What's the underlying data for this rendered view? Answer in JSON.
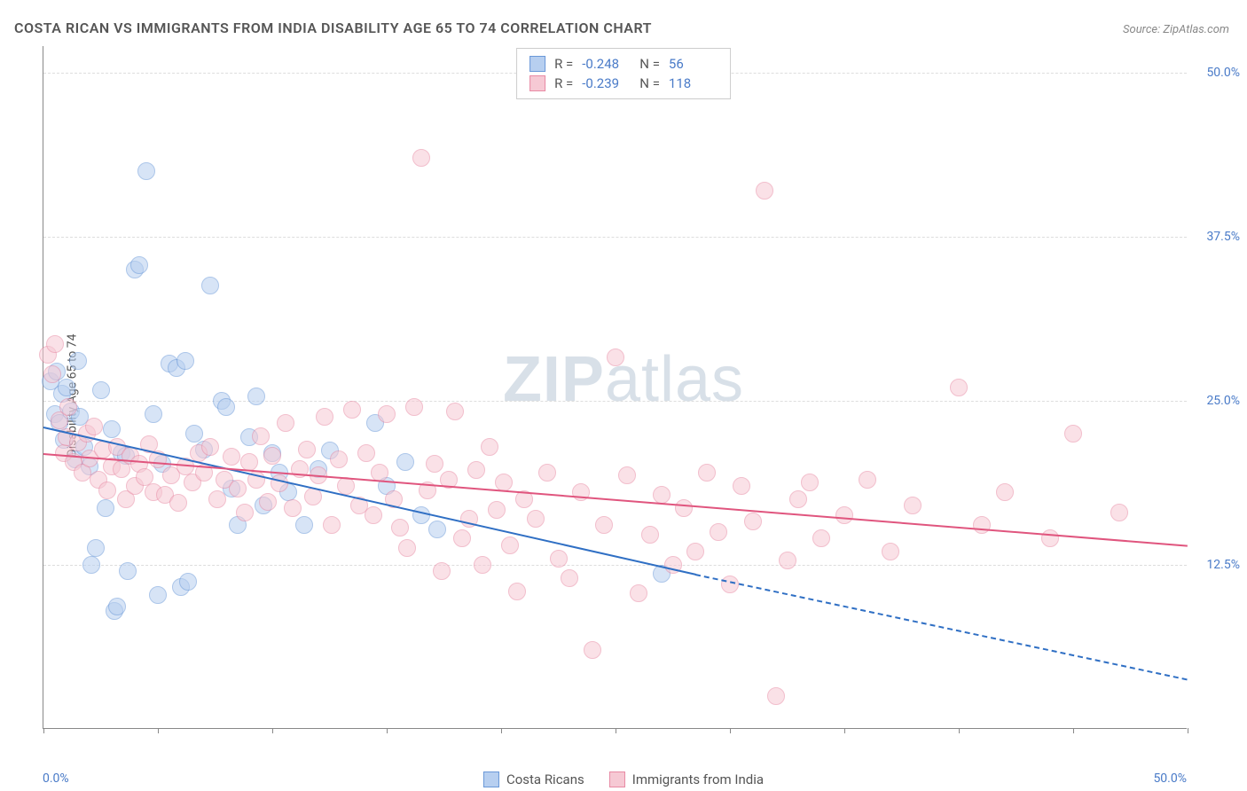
{
  "title": "COSTA RICAN VS IMMIGRANTS FROM INDIA DISABILITY AGE 65 TO 74 CORRELATION CHART",
  "source_label": "Source: ZipAtlas.com",
  "ylabel": "Disability Age 65 to 74",
  "watermark": {
    "bold": "ZIP",
    "rest": "atlas"
  },
  "chart": {
    "type": "scatter",
    "background_color": "#ffffff",
    "grid_color": "#dddddd",
    "axis_color": "#888888",
    "xlim": [
      0,
      50
    ],
    "ylim": [
      0,
      52
    ],
    "xticks": [
      0,
      5,
      10,
      15,
      20,
      25,
      30,
      35,
      40,
      45,
      50
    ],
    "yticks": [
      12.5,
      25.0,
      37.5,
      50.0
    ],
    "ytick_labels": [
      "12.5%",
      "25.0%",
      "37.5%",
      "50.0%"
    ],
    "x_axis_min_label": "0.0%",
    "x_axis_max_label": "50.0%",
    "ytick_color": "#4a7bc8",
    "marker_radius": 10,
    "marker_opacity": 0.55,
    "series": [
      {
        "name": "Costa Ricans",
        "fill_color": "#b7cff0",
        "stroke_color": "#6a98d8",
        "trend_color": "#2f6fc4",
        "r_value": "-0.248",
        "n_value": "56",
        "trend": {
          "x1": 0,
          "y1": 23.0,
          "x2": 28.5,
          "y2": 11.8,
          "dash_x2": 50,
          "dash_y2": 3.8
        },
        "points": [
          [
            0.3,
            26.5
          ],
          [
            0.5,
            24.0
          ],
          [
            0.6,
            27.2
          ],
          [
            0.7,
            23.3
          ],
          [
            0.8,
            25.5
          ],
          [
            0.9,
            22.0
          ],
          [
            1.0,
            26.0
          ],
          [
            1.2,
            24.2
          ],
          [
            1.4,
            20.5
          ],
          [
            1.5,
            28.0
          ],
          [
            1.6,
            23.8
          ],
          [
            1.8,
            21.5
          ],
          [
            2.0,
            20.0
          ],
          [
            2.1,
            12.5
          ],
          [
            2.3,
            13.8
          ],
          [
            2.5,
            25.8
          ],
          [
            2.7,
            16.8
          ],
          [
            3.0,
            22.8
          ],
          [
            3.1,
            9.0
          ],
          [
            3.2,
            9.3
          ],
          [
            3.4,
            21.0
          ],
          [
            3.6,
            20.8
          ],
          [
            3.7,
            12.0
          ],
          [
            4.0,
            35.0
          ],
          [
            4.2,
            35.3
          ],
          [
            4.5,
            42.5
          ],
          [
            4.8,
            24.0
          ],
          [
            5.0,
            10.2
          ],
          [
            5.2,
            20.2
          ],
          [
            5.5,
            27.8
          ],
          [
            5.8,
            27.5
          ],
          [
            6.0,
            10.8
          ],
          [
            6.2,
            28.0
          ],
          [
            6.3,
            11.2
          ],
          [
            6.6,
            22.5
          ],
          [
            7.0,
            21.3
          ],
          [
            7.3,
            33.8
          ],
          [
            7.8,
            25.0
          ],
          [
            8.0,
            24.5
          ],
          [
            8.2,
            18.3
          ],
          [
            8.5,
            15.5
          ],
          [
            9.0,
            22.2
          ],
          [
            9.3,
            25.3
          ],
          [
            9.6,
            17.0
          ],
          [
            10.0,
            21.0
          ],
          [
            10.3,
            19.5
          ],
          [
            10.7,
            18.0
          ],
          [
            11.4,
            15.5
          ],
          [
            12.0,
            19.8
          ],
          [
            12.5,
            21.2
          ],
          [
            14.5,
            23.3
          ],
          [
            15.0,
            18.5
          ],
          [
            15.8,
            20.3
          ],
          [
            16.5,
            16.3
          ],
          [
            17.2,
            15.2
          ],
          [
            27.0,
            11.8
          ]
        ]
      },
      {
        "name": "Immigrants from India",
        "fill_color": "#f6c9d4",
        "stroke_color": "#e88aa4",
        "trend_color": "#e0557e",
        "r_value": "-0.239",
        "n_value": "118",
        "trend": {
          "x1": 0,
          "y1": 21.0,
          "x2": 50,
          "y2": 14.0,
          "dash_x2": null,
          "dash_y2": null
        },
        "points": [
          [
            0.2,
            28.5
          ],
          [
            0.4,
            27.0
          ],
          [
            0.5,
            29.3
          ],
          [
            0.7,
            23.5
          ],
          [
            0.9,
            21.0
          ],
          [
            1.0,
            22.2
          ],
          [
            1.1,
            24.5
          ],
          [
            1.3,
            20.3
          ],
          [
            1.5,
            21.8
          ],
          [
            1.7,
            19.5
          ],
          [
            1.9,
            22.5
          ],
          [
            2.0,
            20.6
          ],
          [
            2.2,
            23.0
          ],
          [
            2.4,
            19.0
          ],
          [
            2.6,
            21.3
          ],
          [
            2.8,
            18.2
          ],
          [
            3.0,
            20.0
          ],
          [
            3.2,
            21.5
          ],
          [
            3.4,
            19.8
          ],
          [
            3.6,
            17.5
          ],
          [
            3.8,
            20.8
          ],
          [
            4.0,
            18.5
          ],
          [
            4.2,
            20.2
          ],
          [
            4.4,
            19.2
          ],
          [
            4.6,
            21.7
          ],
          [
            4.8,
            18.0
          ],
          [
            5.0,
            20.5
          ],
          [
            5.3,
            17.8
          ],
          [
            5.6,
            19.3
          ],
          [
            5.9,
            17.2
          ],
          [
            6.2,
            20.0
          ],
          [
            6.5,
            18.8
          ],
          [
            6.8,
            21.0
          ],
          [
            7.0,
            19.5
          ],
          [
            7.3,
            21.5
          ],
          [
            7.6,
            17.5
          ],
          [
            7.9,
            19.0
          ],
          [
            8.2,
            20.7
          ],
          [
            8.5,
            18.3
          ],
          [
            8.8,
            16.5
          ],
          [
            9.0,
            20.3
          ],
          [
            9.3,
            19.0
          ],
          [
            9.5,
            22.3
          ],
          [
            9.8,
            17.3
          ],
          [
            10.0,
            20.8
          ],
          [
            10.3,
            18.7
          ],
          [
            10.6,
            23.3
          ],
          [
            10.9,
            16.8
          ],
          [
            11.2,
            19.8
          ],
          [
            11.5,
            21.3
          ],
          [
            11.8,
            17.7
          ],
          [
            12.0,
            19.3
          ],
          [
            12.3,
            23.8
          ],
          [
            12.6,
            15.5
          ],
          [
            12.9,
            20.5
          ],
          [
            13.2,
            18.5
          ],
          [
            13.5,
            24.3
          ],
          [
            13.8,
            17.0
          ],
          [
            14.1,
            21.0
          ],
          [
            14.4,
            16.3
          ],
          [
            14.7,
            19.5
          ],
          [
            15.0,
            24.0
          ],
          [
            15.3,
            17.5
          ],
          [
            15.6,
            15.3
          ],
          [
            15.9,
            13.8
          ],
          [
            16.2,
            24.5
          ],
          [
            16.5,
            43.5
          ],
          [
            16.8,
            18.2
          ],
          [
            17.1,
            20.2
          ],
          [
            17.4,
            12.0
          ],
          [
            17.7,
            19.0
          ],
          [
            18.0,
            24.2
          ],
          [
            18.3,
            14.5
          ],
          [
            18.6,
            16.0
          ],
          [
            18.9,
            19.7
          ],
          [
            19.2,
            12.5
          ],
          [
            19.5,
            21.5
          ],
          [
            19.8,
            16.7
          ],
          [
            20.1,
            18.8
          ],
          [
            20.4,
            14.0
          ],
          [
            20.7,
            10.5
          ],
          [
            21.0,
            17.5
          ],
          [
            21.5,
            16.0
          ],
          [
            22.0,
            19.5
          ],
          [
            22.5,
            13.0
          ],
          [
            23.0,
            11.5
          ],
          [
            23.5,
            18.0
          ],
          [
            24.0,
            6.0
          ],
          [
            24.5,
            15.5
          ],
          [
            25.0,
            28.3
          ],
          [
            25.5,
            19.3
          ],
          [
            26.0,
            10.3
          ],
          [
            26.5,
            14.8
          ],
          [
            27.0,
            17.8
          ],
          [
            27.5,
            12.5
          ],
          [
            28.0,
            16.8
          ],
          [
            28.5,
            13.5
          ],
          [
            29.0,
            19.5
          ],
          [
            29.5,
            15.0
          ],
          [
            30.0,
            11.0
          ],
          [
            30.5,
            18.5
          ],
          [
            31.0,
            15.8
          ],
          [
            31.5,
            41.0
          ],
          [
            32.0,
            2.5
          ],
          [
            32.5,
            12.8
          ],
          [
            33.0,
            17.5
          ],
          [
            33.5,
            18.8
          ],
          [
            34.0,
            14.5
          ],
          [
            35.0,
            16.3
          ],
          [
            36.0,
            19.0
          ],
          [
            37.0,
            13.5
          ],
          [
            38.0,
            17.0
          ],
          [
            40.0,
            26.0
          ],
          [
            41.0,
            15.5
          ],
          [
            42.0,
            18.0
          ],
          [
            44.0,
            14.5
          ],
          [
            45.0,
            22.5
          ],
          [
            47.0,
            16.5
          ]
        ]
      }
    ]
  },
  "legend_bottom": [
    {
      "label": "Costa Ricans",
      "fill": "#b7cff0",
      "stroke": "#6a98d8"
    },
    {
      "label": "Immigrants from India",
      "fill": "#f6c9d4",
      "stroke": "#e88aa4"
    }
  ]
}
